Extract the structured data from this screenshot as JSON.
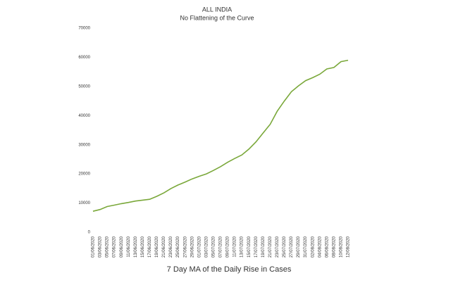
{
  "chart_data": {
    "type": "line",
    "title": "ALL INDIA",
    "subtitle": "No Flattening of the Curve",
    "caption": "7 Day MA of the Daily Rise in Cases",
    "categories": [
      "01/06/2020",
      "03/06/2020",
      "05/06/2020",
      "07/06/2020",
      "09/06/2020",
      "11/06/2020",
      "13/06/2020",
      "15/06/2020",
      "17/06/2020",
      "19/06/2020",
      "21/06/2020",
      "23/06/2020",
      "25/06/2020",
      "27/06/2020",
      "29/06/2020",
      "01/07/2020",
      "03/07/2020",
      "05/07/2020",
      "07/07/2020",
      "09/07/2020",
      "11/07/2020",
      "13/07/2020",
      "15/07/2020",
      "17/07/2020",
      "19/07/2020",
      "21/07/2020",
      "23/07/2020",
      "25/07/2020",
      "27/07/2020",
      "29/07/2020",
      "31/07/2020",
      "02/08/2020",
      "04/08/2020",
      "06/08/2020",
      "08/08/2020",
      "10/08/2020",
      "12/08/2020"
    ],
    "values": [
      7200,
      7800,
      8800,
      9300,
      9800,
      10200,
      10700,
      11000,
      11300,
      12300,
      13500,
      15000,
      16200,
      17200,
      18300,
      19200,
      20000,
      21200,
      22500,
      24000,
      25300,
      26500,
      28500,
      31000,
      34000,
      37000,
      41500,
      45000,
      48200,
      50200,
      52000,
      53000,
      54200,
      56000,
      56500,
      58500,
      59000
    ],
    "color": "#7aa83a",
    "ylim": [
      0,
      70000
    ],
    "yticks": [
      0,
      10000,
      20000,
      30000,
      40000,
      50000,
      60000,
      70000
    ],
    "grid": false
  }
}
